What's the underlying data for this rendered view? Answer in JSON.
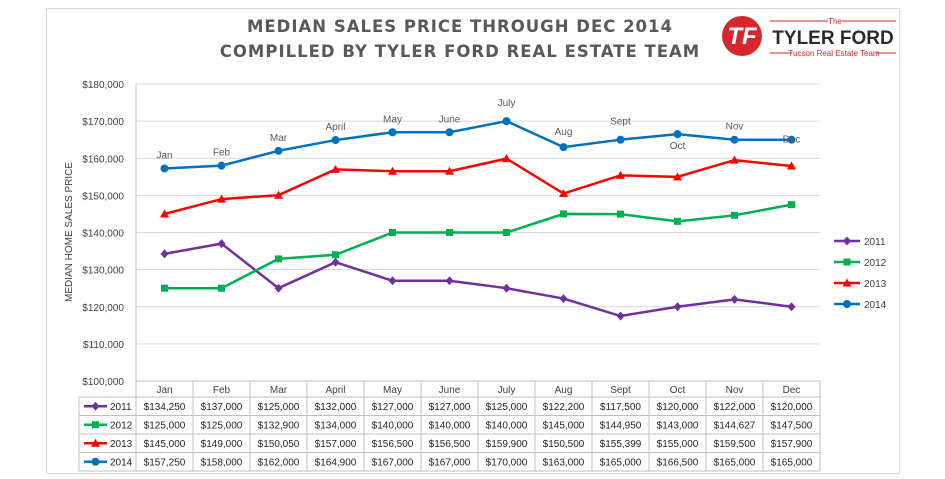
{
  "title": {
    "line1": "MEDIAN SALES PRICE THROUGH DEC 2014",
    "line2": "COMPILLED BY TYLER FORD REAL ESTATE TEAM"
  },
  "logo": {
    "small_text": "The",
    "brand": "TYLER FORD",
    "tagline": "Tucson Real Estate Team",
    "colors": {
      "red": "#d7262d",
      "dark": "#2b2b2b"
    }
  },
  "chart_data": {
    "type": "line",
    "ylabel": "MEDIAN HOME SALES PRICE",
    "ylim": [
      100000,
      180000
    ],
    "yticks": [
      100000,
      110000,
      120000,
      130000,
      140000,
      150000,
      160000,
      170000,
      180000
    ],
    "ytick_labels": [
      "$100,000",
      "$110,000",
      "$120,000",
      "$130,000",
      "$140,000",
      "$150,000",
      "$160,000",
      "$170,000",
      "$180,000"
    ],
    "grid": true,
    "legend_position": "right",
    "categories": [
      "Jan",
      "Feb",
      "Mar",
      "April",
      "May",
      "June",
      "July",
      "Aug",
      "Sept",
      "Oct",
      "Nov",
      "Dec"
    ],
    "series": [
      {
        "name": "2011",
        "color": "#7030a0",
        "marker": "diamond",
        "values": [
          134250,
          137000,
          125000,
          132000,
          127000,
          127000,
          125000,
          122200,
          117500,
          120000,
          122000,
          120000
        ],
        "labels": [
          "$134,250",
          "$137,000",
          "$125,000",
          "$132,000",
          "$127,000",
          "$127,000",
          "$125,000",
          "$122,200",
          "$117,500",
          "$120,000",
          "$122,000",
          "$120,000"
        ]
      },
      {
        "name": "2012",
        "color": "#00b050",
        "marker": "square",
        "values": [
          125000,
          125000,
          132900,
          134000,
          140000,
          140000,
          140000,
          145000,
          144950,
          143000,
          144627,
          147500
        ],
        "labels": [
          "$125,000",
          "$125,000",
          "$132,900",
          "$134,000",
          "$140,000",
          "$140,000",
          "$140,000",
          "$145,000",
          "$144,950",
          "$143,000",
          "$144,627",
          "$147,500"
        ]
      },
      {
        "name": "2013",
        "color": "#ff0000",
        "marker": "triangle",
        "values": [
          145000,
          149000,
          150050,
          157000,
          156500,
          156500,
          159900,
          150500,
          155399,
          155000,
          159500,
          157900
        ],
        "labels": [
          "$145,000",
          "$149,000",
          "$150,050",
          "$157,000",
          "$156,500",
          "$156,500",
          "$159,900",
          "$150,500",
          "$155,399",
          "$155,000",
          "$159,500",
          "$157,900"
        ]
      },
      {
        "name": "2014",
        "color": "#0070c0",
        "marker": "circle",
        "values": [
          157250,
          158000,
          162000,
          164900,
          167000,
          167000,
          170000,
          163000,
          165000,
          166500,
          165000,
          165000
        ],
        "labels": [
          "$157,250",
          "$158,000",
          "$162,000",
          "$164,900",
          "$167,000",
          "$167,000",
          "$170,000",
          "$163,000",
          "$165,000",
          "$166,500",
          "$165,000",
          "$165,000"
        ]
      }
    ],
    "point_annotations": [
      "Jan",
      "Feb",
      "Mar",
      "April",
      "May",
      "June",
      "July",
      "Aug",
      "Sept",
      "Oct",
      "Nov",
      "Dec"
    ]
  }
}
